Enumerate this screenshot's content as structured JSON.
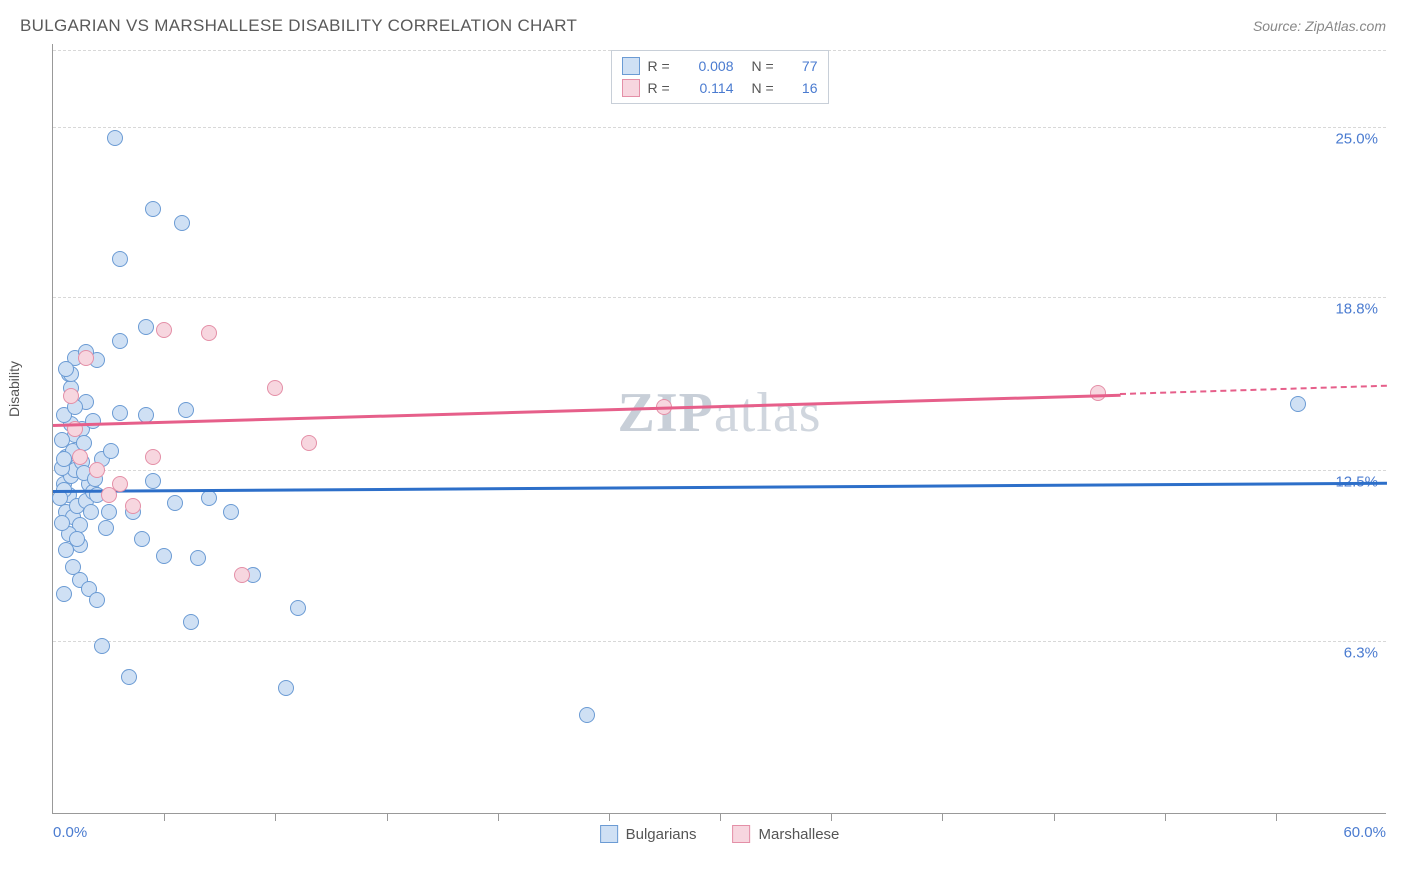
{
  "header": {
    "title": "BULGARIAN VS MARSHALLESE DISABILITY CORRELATION CHART",
    "source": "Source: ZipAtlas.com"
  },
  "chart": {
    "type": "scatter",
    "ylabel": "Disability",
    "watermark": "ZIPatlas",
    "background_color": "#ffffff",
    "grid_color": "#d8d8d8",
    "axis_color": "#999999",
    "xlim": [
      0,
      60
    ],
    "ylim": [
      0,
      28
    ],
    "x_ticks_minor": [
      5,
      10,
      15,
      20,
      25,
      30,
      35,
      40,
      45,
      50,
      55
    ],
    "x_labels": [
      {
        "v": 0,
        "text": "0.0%",
        "align": "left"
      },
      {
        "v": 60,
        "text": "60.0%",
        "align": "right"
      }
    ],
    "y_gridlines": [
      {
        "v": 6.3,
        "label": "6.3%"
      },
      {
        "v": 12.5,
        "label": "12.5%"
      },
      {
        "v": 18.8,
        "label": "18.8%"
      },
      {
        "v": 25.0,
        "label": "25.0%"
      }
    ],
    "ytick_color": "#4a7bd0",
    "label_fontsize": 14,
    "series": {
      "bulgarians": {
        "label": "Bulgarians",
        "marker_fill": "#cfe0f4",
        "marker_stroke": "#6b9bd4",
        "marker_size": 16,
        "line_color": "#2d6fc9",
        "line_width": 2.5,
        "r": "0.008",
        "n": "77",
        "trend": {
          "x1": 0,
          "y1": 11.8,
          "x2": 60,
          "y2": 12.1
        },
        "points": [
          [
            0.5,
            12.0
          ],
          [
            0.6,
            11.0
          ],
          [
            0.8,
            12.3
          ],
          [
            0.7,
            11.6
          ],
          [
            0.9,
            10.8
          ],
          [
            1.0,
            12.5
          ],
          [
            1.1,
            11.2
          ],
          [
            0.5,
            11.8
          ],
          [
            1.3,
            12.8
          ],
          [
            1.2,
            10.5
          ],
          [
            1.5,
            11.4
          ],
          [
            0.6,
            13.0
          ],
          [
            1.6,
            12.0
          ],
          [
            1.4,
            12.4
          ],
          [
            1.7,
            11.0
          ],
          [
            0.4,
            12.6
          ],
          [
            1.8,
            11.7
          ],
          [
            0.9,
            13.2
          ],
          [
            0.7,
            10.2
          ],
          [
            1.0,
            13.8
          ],
          [
            0.8,
            14.2
          ],
          [
            1.2,
            9.8
          ],
          [
            1.9,
            12.2
          ],
          [
            0.5,
            14.5
          ],
          [
            2.0,
            11.6
          ],
          [
            0.6,
            9.6
          ],
          [
            1.3,
            14.0
          ],
          [
            2.2,
            12.9
          ],
          [
            0.4,
            13.6
          ],
          [
            1.5,
            15.0
          ],
          [
            2.5,
            11.0
          ],
          [
            0.8,
            15.5
          ],
          [
            0.7,
            16.0
          ],
          [
            3.0,
            14.6
          ],
          [
            3.6,
            11.0
          ],
          [
            4.0,
            10.0
          ],
          [
            4.2,
            14.5
          ],
          [
            4.5,
            12.1
          ],
          [
            5.0,
            9.4
          ],
          [
            5.5,
            11.3
          ],
          [
            6.2,
            7.0
          ],
          [
            6.5,
            9.3
          ],
          [
            7.0,
            11.5
          ],
          [
            8.0,
            11.0
          ],
          [
            9.0,
            8.7
          ],
          [
            10.5,
            4.6
          ],
          [
            11.0,
            7.5
          ],
          [
            24.0,
            3.6
          ],
          [
            2.8,
            24.6
          ],
          [
            4.5,
            22.0
          ],
          [
            5.8,
            21.5
          ],
          [
            3.0,
            20.2
          ],
          [
            4.2,
            17.7
          ],
          [
            3.0,
            17.2
          ],
          [
            6.0,
            14.7
          ],
          [
            2.0,
            16.5
          ],
          [
            1.0,
            16.6
          ],
          [
            0.8,
            16.0
          ],
          [
            1.5,
            16.8
          ],
          [
            0.6,
            16.2
          ],
          [
            0.9,
            9.0
          ],
          [
            1.2,
            8.5
          ],
          [
            0.5,
            8.0
          ],
          [
            1.6,
            8.2
          ],
          [
            2.0,
            7.8
          ],
          [
            1.4,
            13.5
          ],
          [
            1.8,
            14.3
          ],
          [
            1.0,
            14.8
          ],
          [
            2.4,
            10.4
          ],
          [
            2.6,
            13.2
          ],
          [
            0.3,
            11.5
          ],
          [
            0.4,
            10.6
          ],
          [
            0.5,
            12.9
          ],
          [
            1.1,
            10.0
          ],
          [
            3.4,
            5.0
          ],
          [
            2.2,
            6.1
          ],
          [
            56.0,
            14.9
          ]
        ]
      },
      "marshallese": {
        "label": "Marshallese",
        "marker_fill": "#f7d6df",
        "marker_stroke": "#e48fa7",
        "marker_size": 16,
        "line_color": "#e65f8a",
        "line_width": 2.5,
        "r": "0.114",
        "n": "16",
        "trend_solid": {
          "x1": 0,
          "y1": 14.2,
          "x2": 48,
          "y2": 15.3
        },
        "trend_dash": {
          "x1": 48,
          "y1": 15.3,
          "x2": 60,
          "y2": 15.6
        },
        "points": [
          [
            1.5,
            16.6
          ],
          [
            0.8,
            15.2
          ],
          [
            1.2,
            13.0
          ],
          [
            2.0,
            12.5
          ],
          [
            2.5,
            11.6
          ],
          [
            3.0,
            12.0
          ],
          [
            3.6,
            11.2
          ],
          [
            4.5,
            13.0
          ],
          [
            5.0,
            17.6
          ],
          [
            7.0,
            17.5
          ],
          [
            10.0,
            15.5
          ],
          [
            11.5,
            13.5
          ],
          [
            8.5,
            8.7
          ],
          [
            27.5,
            14.8
          ],
          [
            47.0,
            15.3
          ],
          [
            1.0,
            14.0
          ]
        ]
      }
    },
    "legend_top": [
      {
        "swatch_fill": "#cfe0f4",
        "swatch_stroke": "#6b9bd4",
        "r_label": "R =",
        "r_val": "0.008",
        "n_label": "N =",
        "n_val": "77"
      },
      {
        "swatch_fill": "#f7d6df",
        "swatch_stroke": "#e48fa7",
        "r_label": "R =",
        "r_val": "0.114",
        "n_label": "N =",
        "n_val": "16"
      }
    ],
    "legend_bottom": [
      {
        "swatch_fill": "#cfe0f4",
        "swatch_stroke": "#6b9bd4",
        "label": "Bulgarians"
      },
      {
        "swatch_fill": "#f7d6df",
        "swatch_stroke": "#e48fa7",
        "label": "Marshallese"
      }
    ]
  }
}
